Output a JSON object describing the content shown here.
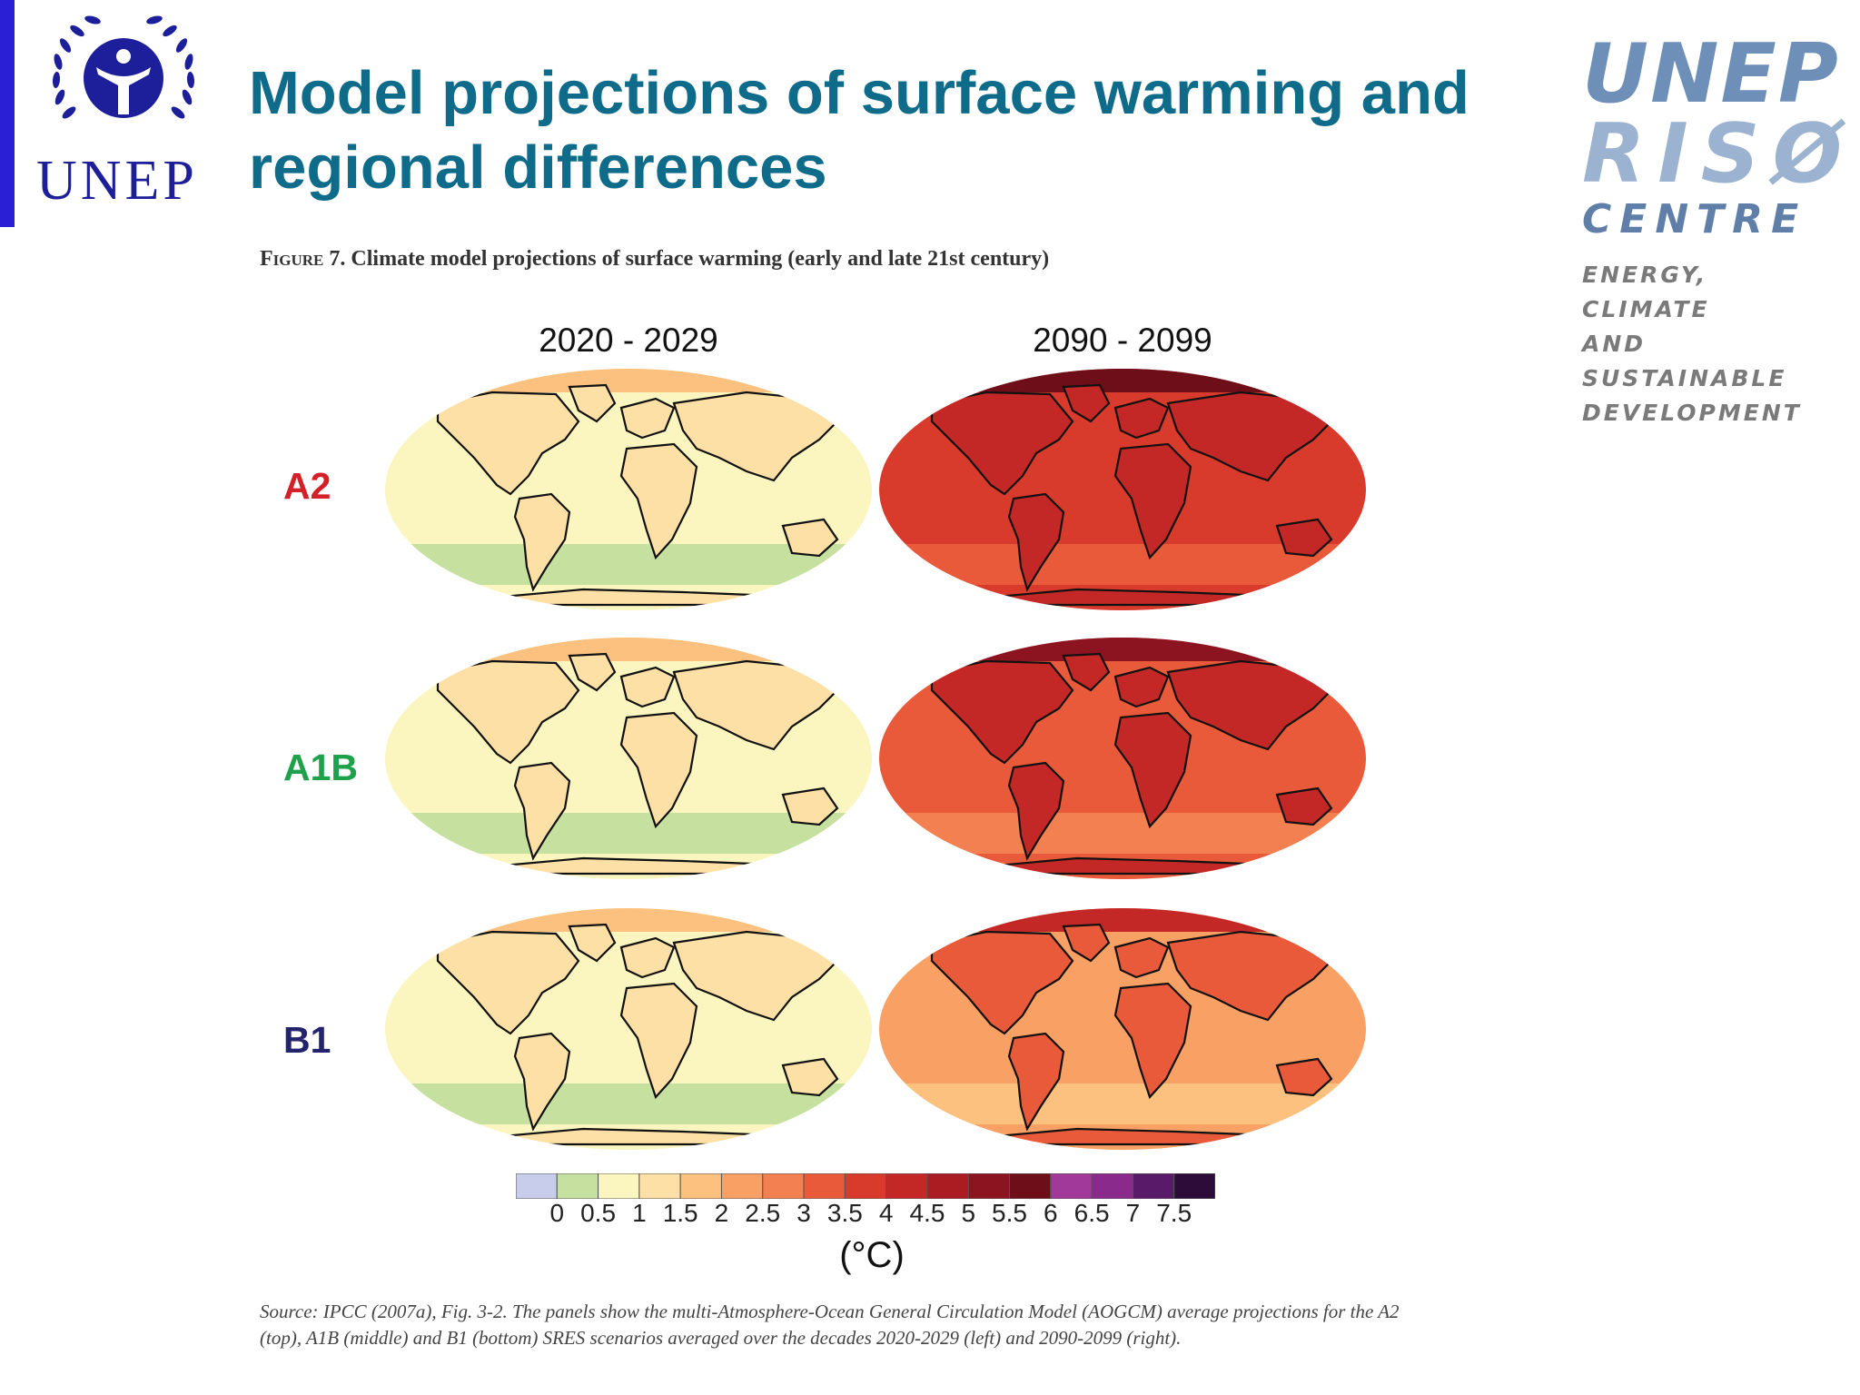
{
  "header": {
    "unep_logo_text": "UNEP",
    "title": "Model projections of surface warming and regional differences",
    "riso_logo": {
      "line1": "UNEP",
      "line2": "RISØ",
      "line3": "CENTRE",
      "tagline": [
        "ENERGY, CLIMATE",
        "AND SUSTAINABLE",
        "DEVELOPMENT"
      ]
    }
  },
  "figure": {
    "caption_prefix": "Figure",
    "caption_text": " 7. Climate model projections of surface warming (early and late 21st century)",
    "columns": [
      "2020 - 2029",
      "2090 - 2099"
    ],
    "rows": [
      {
        "label": "A2",
        "color": "#d42027",
        "left_warming": 0.8,
        "right_warming": 3.6
      },
      {
        "label": "A1B",
        "color": "#1fa04a",
        "left_warming": 0.8,
        "right_warming": 3.2
      },
      {
        "label": "B1",
        "color": "#23246b",
        "left_warming": 0.7,
        "right_warming": 2.2
      }
    ],
    "colorbar": {
      "ticks": [
        "0",
        "0.5",
        "1",
        "1.5",
        "2",
        "2.5",
        "3",
        "3.5",
        "4",
        "4.5",
        "5",
        "5.5",
        "6",
        "6.5",
        "7",
        "7.5"
      ],
      "colors": [
        "#c9cdec",
        "#c6e0a0",
        "#fbf5c0",
        "#fde0a6",
        "#fcc07f",
        "#f9a065",
        "#f28050",
        "#e85a3a",
        "#d83a2c",
        "#c42826",
        "#ab1c22",
        "#8c1320",
        "#6e0e19",
        "#a0399a",
        "#8a2a8c",
        "#5a1a6a",
        "#2d0c3a"
      ],
      "unit": "(°C)"
    },
    "source_note": "Source: IPCC (2007a), Fig. 3-2. The panels show the multi-Atmosphere-Ocean General Circulation Model (AOGCM) average projections for the A2 (top), A1B (middle) and B1 (bottom) SRES scenarios averaged over the decades 2020-2029 (left) and 2090-2099 (right)."
  }
}
